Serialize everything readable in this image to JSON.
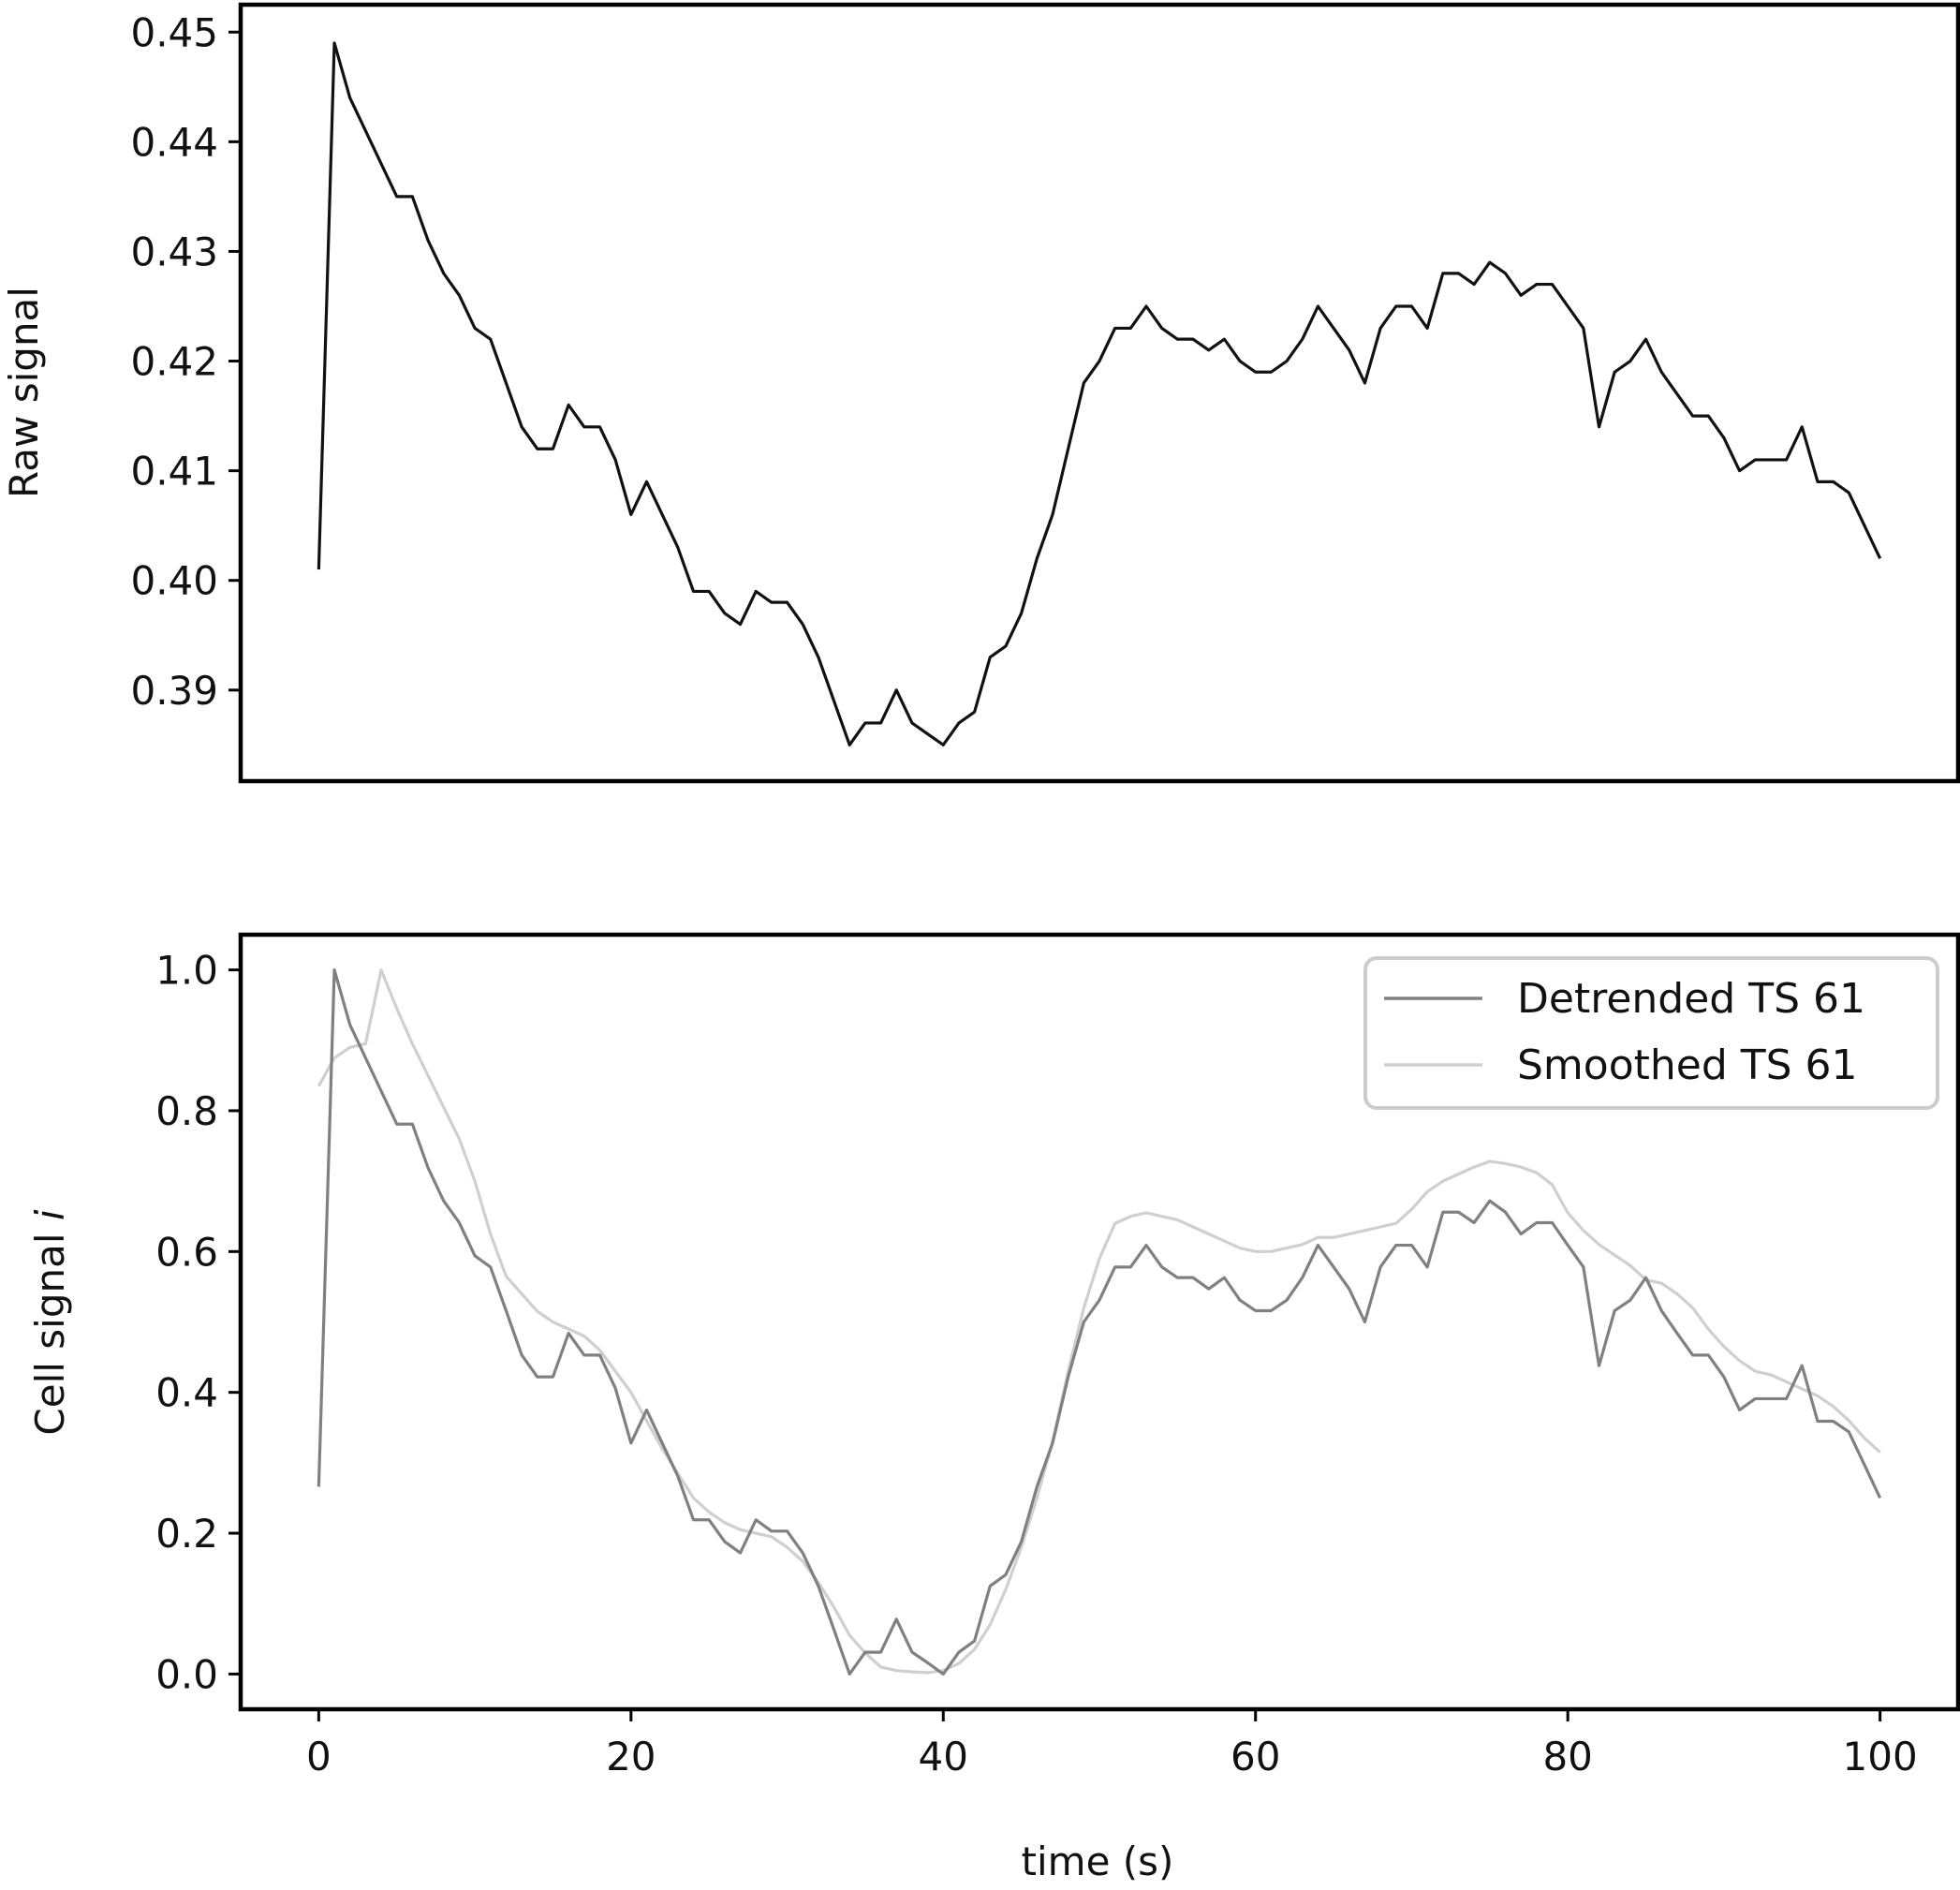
{
  "chart_data": [
    {
      "type": "line",
      "panel": "top",
      "ylabel": "Raw signal",
      "xlabel": "",
      "xlim": [
        -5,
        105
      ],
      "ylim": [
        0.3817,
        0.4525
      ],
      "yticks": [
        "0.39",
        "0.40",
        "0.41",
        "0.42",
        "0.43",
        "0.44",
        "0.45"
      ],
      "ytick_values": [
        0.39,
        0.4,
        0.41,
        0.42,
        0.43,
        0.44,
        0.45
      ],
      "x_start": 0,
      "x_step": 1,
      "series": [
        {
          "color": "#111111",
          "values": [
            0.401,
            0.449,
            0.444,
            0.441,
            0.438,
            0.435,
            0.435,
            0.431,
            0.428,
            0.426,
            0.423,
            0.422,
            0.418,
            0.414,
            0.412,
            0.412,
            0.416,
            0.414,
            0.414,
            0.411,
            0.406,
            0.409,
            0.406,
            0.403,
            0.399,
            0.399,
            0.397,
            0.396,
            0.399,
            0.398,
            0.398,
            0.396,
            0.393,
            0.389,
            0.385,
            0.387,
            0.387,
            0.39,
            0.387,
            0.386,
            0.385,
            0.387,
            0.388,
            0.393,
            0.394,
            0.397,
            0.402,
            0.406,
            0.412,
            0.418,
            0.42,
            0.423,
            0.423,
            0.425,
            0.423,
            0.422,
            0.422,
            0.421,
            0.422,
            0.42,
            0.419,
            0.419,
            0.42,
            0.422,
            0.425,
            0.423,
            0.421,
            0.418,
            0.423,
            0.425,
            0.425,
            0.423,
            0.428,
            0.428,
            0.427,
            0.429,
            0.428,
            0.426,
            0.427,
            0.427,
            0.425,
            0.423,
            0.414,
            0.419,
            0.42,
            0.422,
            0.419,
            0.417,
            0.415,
            0.415,
            0.413,
            0.41,
            0.411,
            0.411,
            0.411,
            0.414,
            0.409,
            0.409,
            0.408,
            0.405,
            0.402
          ]
        }
      ]
    },
    {
      "type": "line",
      "panel": "bottom",
      "ylabel_prefix": "Cell signal ",
      "ylabel_italic": "i",
      "xlabel": "time (s)",
      "xlim": [
        -5,
        105
      ],
      "ylim": [
        -0.05,
        1.05
      ],
      "yticks": [
        "0.0",
        "0.2",
        "0.4",
        "0.6",
        "0.8",
        "1.0"
      ],
      "ytick_values": [
        0.0,
        0.2,
        0.4,
        0.6,
        0.8,
        1.0
      ],
      "xticks": [
        "0",
        "20",
        "40",
        "60",
        "80",
        "100"
      ],
      "xtick_values": [
        0,
        20,
        40,
        60,
        80,
        100
      ],
      "x_start": 0,
      "x_step": 1,
      "legend_position": "top-right",
      "series": [
        {
          "name": "Detrended TS 61",
          "color": "#808080",
          "values": [
            0.266,
            1.0,
            0.922,
            0.875,
            0.828,
            0.781,
            0.781,
            0.719,
            0.672,
            0.641,
            0.594,
            0.578,
            0.516,
            0.453,
            0.422,
            0.422,
            0.484,
            0.453,
            0.453,
            0.406,
            0.328,
            0.375,
            0.328,
            0.281,
            0.219,
            0.219,
            0.188,
            0.172,
            0.219,
            0.203,
            0.203,
            0.172,
            0.125,
            0.063,
            0.0,
            0.031,
            0.031,
            0.078,
            0.031,
            0.016,
            0.0,
            0.031,
            0.047,
            0.125,
            0.141,
            0.188,
            0.266,
            0.328,
            0.422,
            0.5,
            0.531,
            0.578,
            0.578,
            0.609,
            0.578,
            0.563,
            0.563,
            0.547,
            0.563,
            0.531,
            0.516,
            0.516,
            0.531,
            0.563,
            0.609,
            0.578,
            0.547,
            0.5,
            0.578,
            0.609,
            0.609,
            0.578,
            0.656,
            0.656,
            0.641,
            0.672,
            0.656,
            0.625,
            0.641,
            0.641,
            0.609,
            0.578,
            0.438,
            0.516,
            0.531,
            0.563,
            0.516,
            0.484,
            0.453,
            0.453,
            0.422,
            0.375,
            0.391,
            0.391,
            0.391,
            0.438,
            0.359,
            0.359,
            0.344,
            0.297,
            0.25
          ]
        },
        {
          "name": "Smoothed TS 61",
          "color": "#cfcfcf",
          "values": [
            0.835,
            0.875,
            0.89,
            0.895,
            1.0,
            0.945,
            0.895,
            0.85,
            0.805,
            0.76,
            0.7,
            0.625,
            0.565,
            0.54,
            0.515,
            0.5,
            0.49,
            0.48,
            0.46,
            0.43,
            0.4,
            0.36,
            0.32,
            0.285,
            0.25,
            0.23,
            0.215,
            0.205,
            0.2,
            0.195,
            0.18,
            0.16,
            0.13,
            0.095,
            0.055,
            0.03,
            0.01,
            0.005,
            0.003,
            0.002,
            0.005,
            0.015,
            0.035,
            0.07,
            0.12,
            0.18,
            0.25,
            0.33,
            0.43,
            0.52,
            0.59,
            0.64,
            0.65,
            0.655,
            0.65,
            0.645,
            0.635,
            0.625,
            0.615,
            0.605,
            0.6,
            0.6,
            0.605,
            0.61,
            0.62,
            0.62,
            0.625,
            0.63,
            0.635,
            0.64,
            0.66,
            0.685,
            0.7,
            0.71,
            0.72,
            0.728,
            0.725,
            0.72,
            0.712,
            0.695,
            0.655,
            0.63,
            0.61,
            0.595,
            0.58,
            0.56,
            0.555,
            0.54,
            0.52,
            0.49,
            0.465,
            0.445,
            0.43,
            0.425,
            0.415,
            0.405,
            0.395,
            0.38,
            0.36,
            0.335,
            0.315
          ]
        }
      ]
    }
  ]
}
